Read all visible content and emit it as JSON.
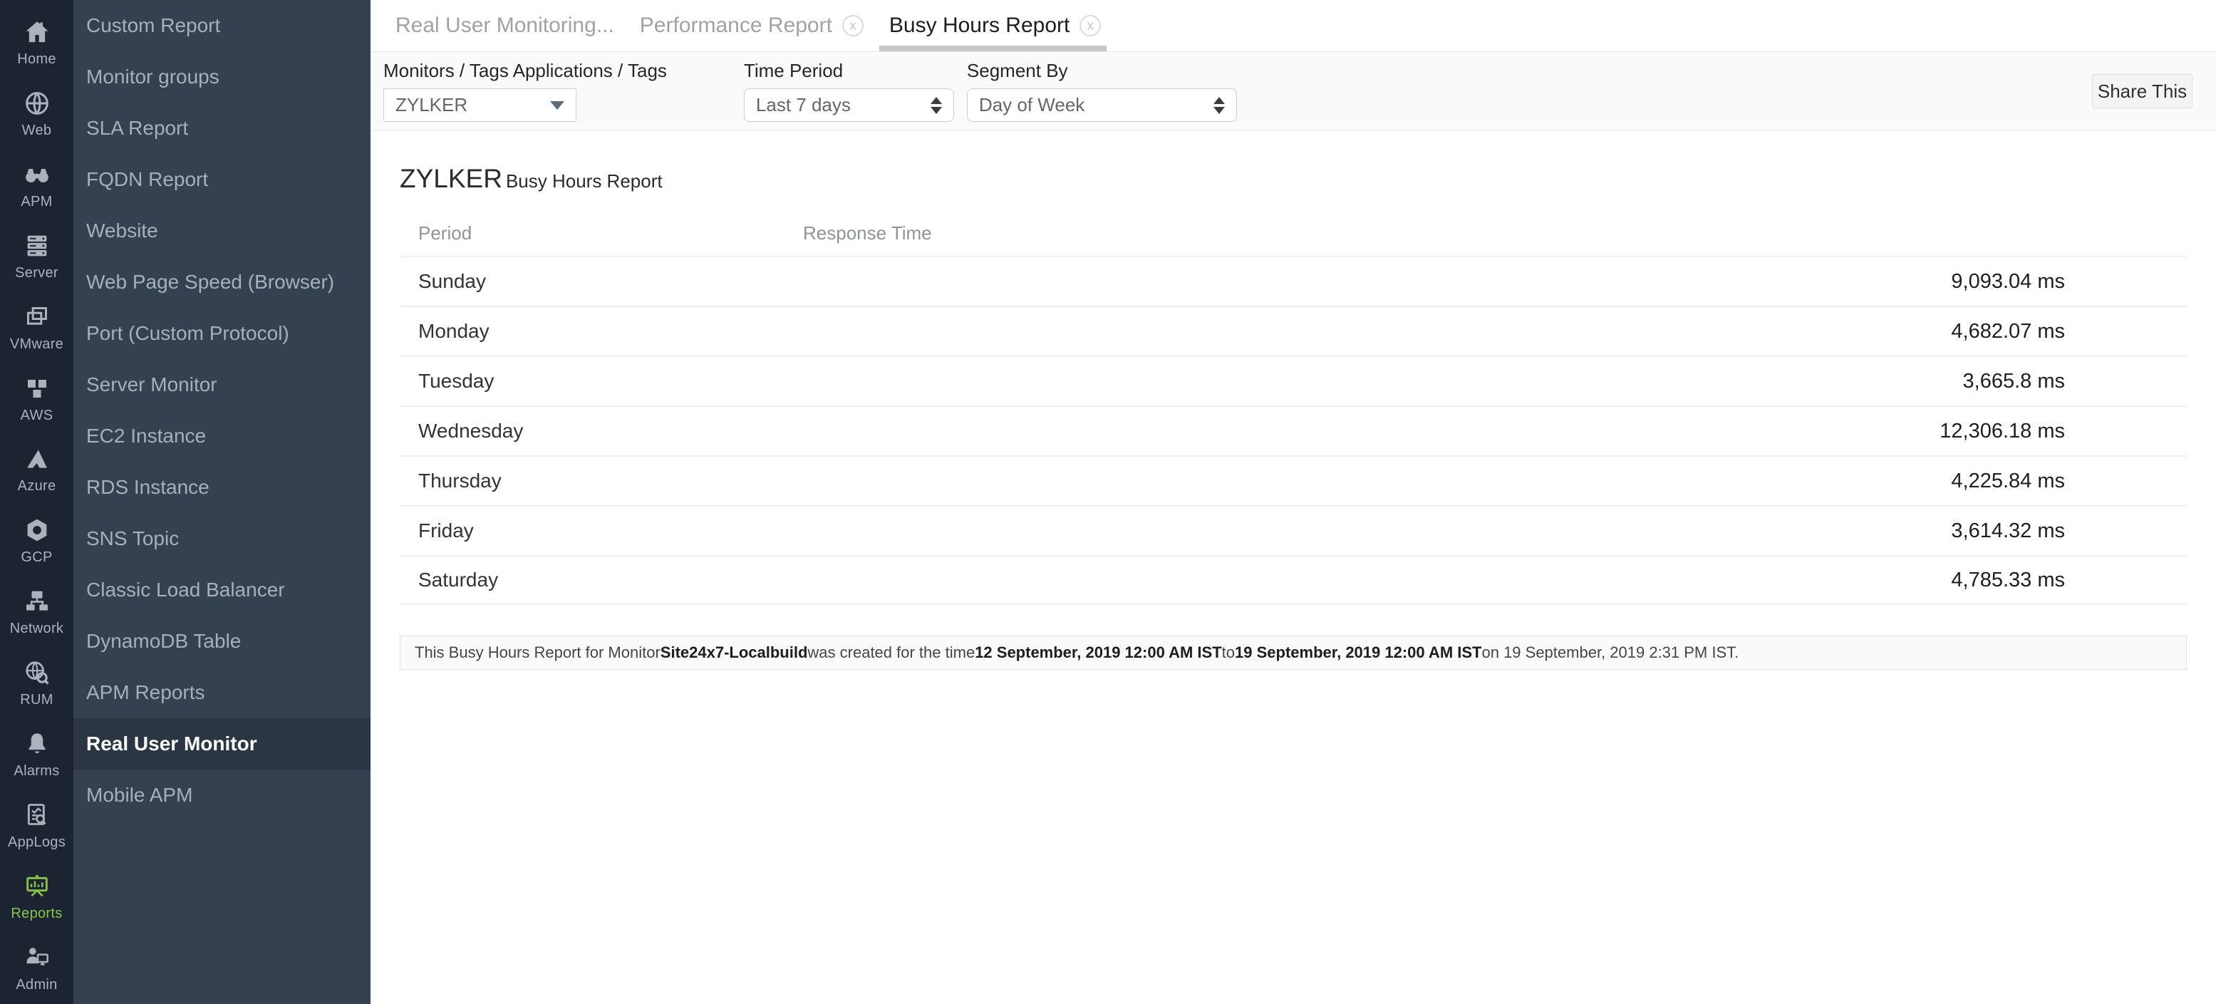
{
  "rail": {
    "active_color": "#8bc34a",
    "items": [
      {
        "label": "Home",
        "icon": "home-icon",
        "active": false
      },
      {
        "label": "Web",
        "icon": "web-icon",
        "active": false
      },
      {
        "label": "APM",
        "icon": "apm-icon",
        "active": false
      },
      {
        "label": "Server",
        "icon": "server-icon",
        "active": false
      },
      {
        "label": "VMware",
        "icon": "vmware-icon",
        "active": false
      },
      {
        "label": "AWS",
        "icon": "aws-icon",
        "active": false
      },
      {
        "label": "Azure",
        "icon": "azure-icon",
        "active": false
      },
      {
        "label": "GCP",
        "icon": "gcp-icon",
        "active": false
      },
      {
        "label": "Network",
        "icon": "network-icon",
        "active": false
      },
      {
        "label": "RUM",
        "icon": "rum-icon",
        "active": false
      },
      {
        "label": "Alarms",
        "icon": "alarms-icon",
        "active": false
      },
      {
        "label": "AppLogs",
        "icon": "applogs-icon",
        "active": false
      },
      {
        "label": "Reports",
        "icon": "reports-icon",
        "active": true
      },
      {
        "label": "Admin",
        "icon": "admin-icon",
        "active": false
      }
    ]
  },
  "sidebar": {
    "active_index": 14,
    "items": [
      "Custom Report",
      "Monitor groups",
      "SLA Report",
      "FQDN Report",
      "Website",
      "Web Page Speed (Browser)",
      "Port (Custom Protocol)",
      "Server Monitor",
      "EC2 Instance",
      "RDS Instance",
      "SNS Topic",
      "Classic Load Balancer",
      "DynamoDB Table",
      "APM Reports",
      "Real User Monitor",
      "Mobile APM"
    ]
  },
  "tabs": [
    {
      "label": "Real User Monitoring...",
      "closable": false,
      "active": false
    },
    {
      "label": "Performance Report",
      "closable": true,
      "active": false
    },
    {
      "label": "Busy Hours Report",
      "closable": true,
      "active": true
    }
  ],
  "filters": {
    "monitor": {
      "label": "Monitors / Tags Applications / Tags",
      "value": "ZYLKER"
    },
    "time_period": {
      "label": "Time Period",
      "value": "Last 7 days"
    },
    "segment_by": {
      "label": "Segment By",
      "value": "Day of Week"
    }
  },
  "share_button_label": "Share This",
  "report": {
    "title_prefix": "ZYLKER",
    "title_suffix": "Busy Hours Report",
    "columns": {
      "period": "Period",
      "response_time": "Response Time"
    }
  },
  "chart_data": {
    "type": "bar",
    "orientation": "horizontal",
    "title": "ZYLKER Busy Hours Report",
    "xlabel": "Response Time",
    "ylabel": "Period",
    "unit": "ms",
    "categories": [
      "Sunday",
      "Monday",
      "Tuesday",
      "Wednesday",
      "Thursday",
      "Friday",
      "Saturday"
    ],
    "values": [
      9093.04,
      4682.07,
      3665.8,
      12306.18,
      4225.84,
      3614.32,
      4785.33
    ],
    "value_labels": [
      "9,093.04 ms",
      "4,682.07 ms",
      "3,665.8 ms",
      "12,306.18 ms",
      "4,225.84 ms",
      "3,614.32 ms",
      "4,785.33 ms"
    ],
    "xlim": [
      0,
      12306.18
    ],
    "bar_color": "#4dcbe3",
    "grid": false,
    "legend": "none"
  },
  "footer": {
    "segments": [
      {
        "text": "This Busy Hours Report for Monitor ",
        "bold": false
      },
      {
        "text": "Site24x7-Localbuild",
        "bold": true
      },
      {
        "text": " was created for the time ",
        "bold": false
      },
      {
        "text": "12 September, 2019 12:00 AM IST",
        "bold": true
      },
      {
        "text": " to ",
        "bold": false
      },
      {
        "text": "19 September, 2019 12:00 AM IST",
        "bold": true
      },
      {
        "text": " on 19 September, 2019 2:31 PM IST.",
        "bold": false
      }
    ]
  }
}
